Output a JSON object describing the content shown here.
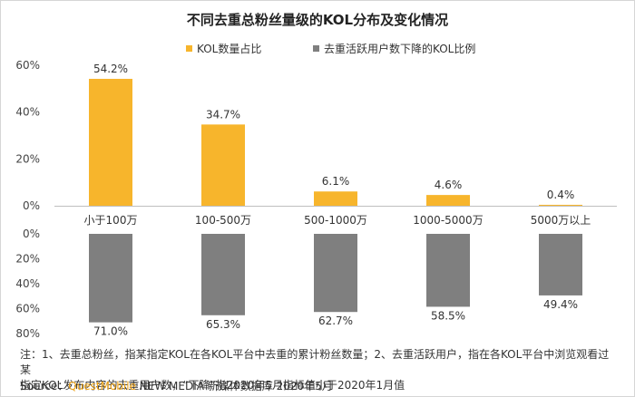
{
  "chart_data": {
    "type": "bar",
    "title": "不同去重总粉丝量级的KOL分布及变化情况",
    "categories": [
      "小于100万",
      "100-500万",
      "500-1000万",
      "1000-5000万",
      "5000万以上"
    ],
    "series": [
      {
        "name": "KOL数量占比",
        "values": [
          54.2,
          34.7,
          6.1,
          4.6,
          0.4
        ],
        "labels": [
          "54.2%",
          "34.7%",
          "6.1%",
          "4.6%",
          "0.4%"
        ],
        "color": "#f7b52c"
      },
      {
        "name": "去重活跃用户数下降的KOL比例",
        "values": [
          71.0,
          65.3,
          62.7,
          58.5,
          49.4
        ],
        "labels": [
          "71.0%",
          "65.3%",
          "62.7%",
          "58.5%",
          "49.4%"
        ],
        "color": "#7f7f7f"
      }
    ],
    "top_axis": {
      "ylim": [
        0,
        60
      ],
      "ticks": [
        "0%",
        "20%",
        "40%",
        "60%"
      ]
    },
    "bottom_axis": {
      "ylim": [
        0,
        80
      ],
      "ticks": [
        "0%",
        "20%",
        "40%",
        "60%",
        "80%"
      ],
      "inverted": true
    },
    "legend_position": "top-center",
    "grid": false
  },
  "footnote": {
    "line1": "注：1、去重总粉丝，指某指定KOL在各KOL平台中去重的累计粉丝数量；2、去重活跃用户，指在各KOL平台中浏览观看过某",
    "line2": "指定KOL发布内容的去重用户数，“下降”指2020年5月指标值小于2020年1月值"
  },
  "source": {
    "prefix": "Source：",
    "brand": "QuestMobile",
    "rest": " NEW MEDIA 新媒体数据库 2020年5月"
  }
}
